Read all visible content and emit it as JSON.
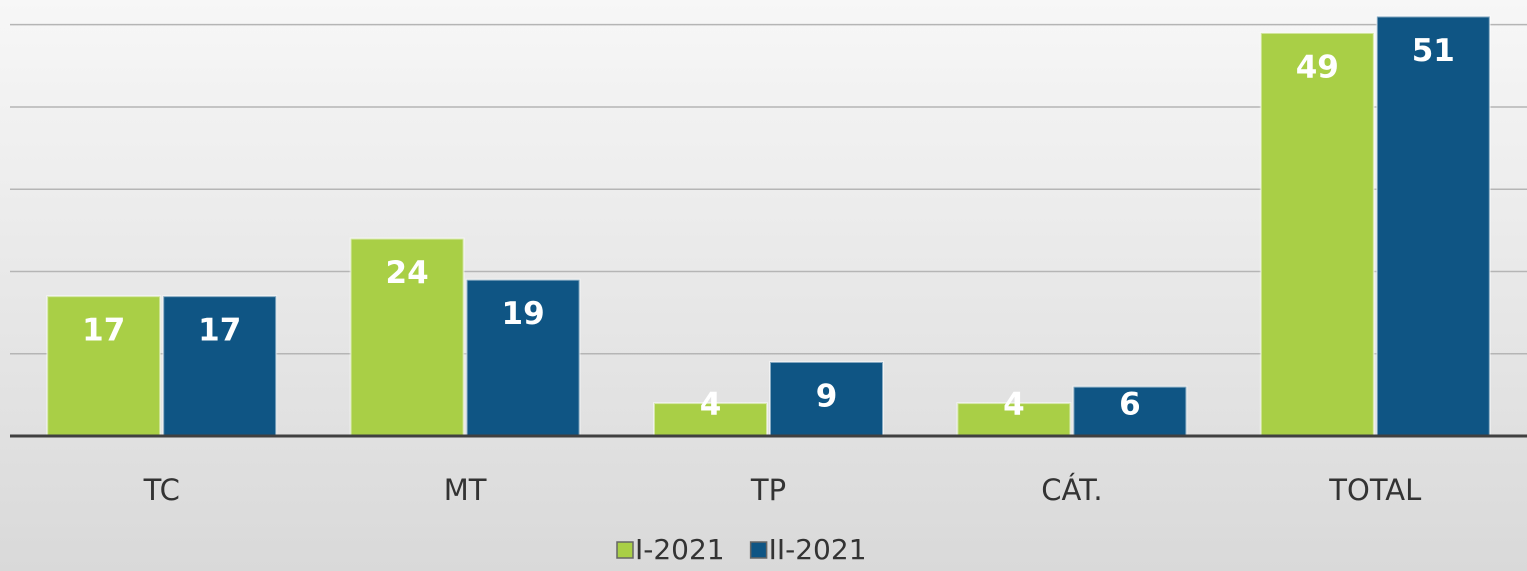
{
  "chart_data": {
    "type": "bar",
    "categories": [
      "TC",
      "MT",
      "TP",
      "CÁT.",
      "TOTAL"
    ],
    "series": [
      {
        "name": "I-2021",
        "color": "#a9cf46",
        "values": [
          17,
          24,
          4,
          4,
          49
        ]
      },
      {
        "name": "II-2021",
        "color": "#0f5584",
        "values": [
          17,
          19,
          9,
          6,
          51
        ]
      }
    ],
    "ylim": [
      0,
      53
    ],
    "yticks": [
      0,
      10,
      20,
      30,
      40,
      50
    ],
    "grid": true,
    "legend": "bottom"
  }
}
